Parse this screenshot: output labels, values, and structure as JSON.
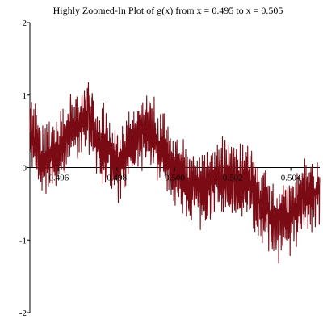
{
  "chart_data": {
    "type": "line",
    "title": "Highly Zoomed-In Plot of g(x) from x = 0.495 to x = 0.505",
    "xlabel": "",
    "ylabel": "",
    "xlim": [
      0.495,
      0.505
    ],
    "ylim": [
      -2,
      2
    ],
    "x_ticks": [
      0.496,
      0.498,
      0.5,
      0.502,
      0.504
    ],
    "x_tick_labels": [
      "0.496",
      "0.498",
      "0.500",
      "0.502",
      "0.504"
    ],
    "y_ticks": [
      -2,
      -1,
      0,
      1,
      2
    ],
    "y_tick_labels": [
      "-2",
      "-1",
      "0",
      "1",
      "2"
    ],
    "grid": false,
    "line_color": "#7a0a14",
    "series": [
      {
        "x": [
          0.495,
          0.4955,
          0.496,
          0.4965,
          0.497,
          0.4975,
          0.498,
          0.4985,
          0.499,
          0.4995,
          0.5,
          0.5005,
          0.501,
          0.5015,
          0.502,
          0.5025,
          0.503,
          0.5035,
          0.504,
          0.5045,
          0.505
        ],
        "values": [
          0.45,
          0.1,
          0.25,
          0.55,
          0.7,
          0.3,
          0.05,
          0.3,
          0.5,
          0.3,
          0.0,
          -0.25,
          -0.3,
          -0.1,
          -0.2,
          -0.2,
          -0.5,
          -0.75,
          -0.65,
          -0.35,
          -0.35
        ]
      }
    ]
  }
}
